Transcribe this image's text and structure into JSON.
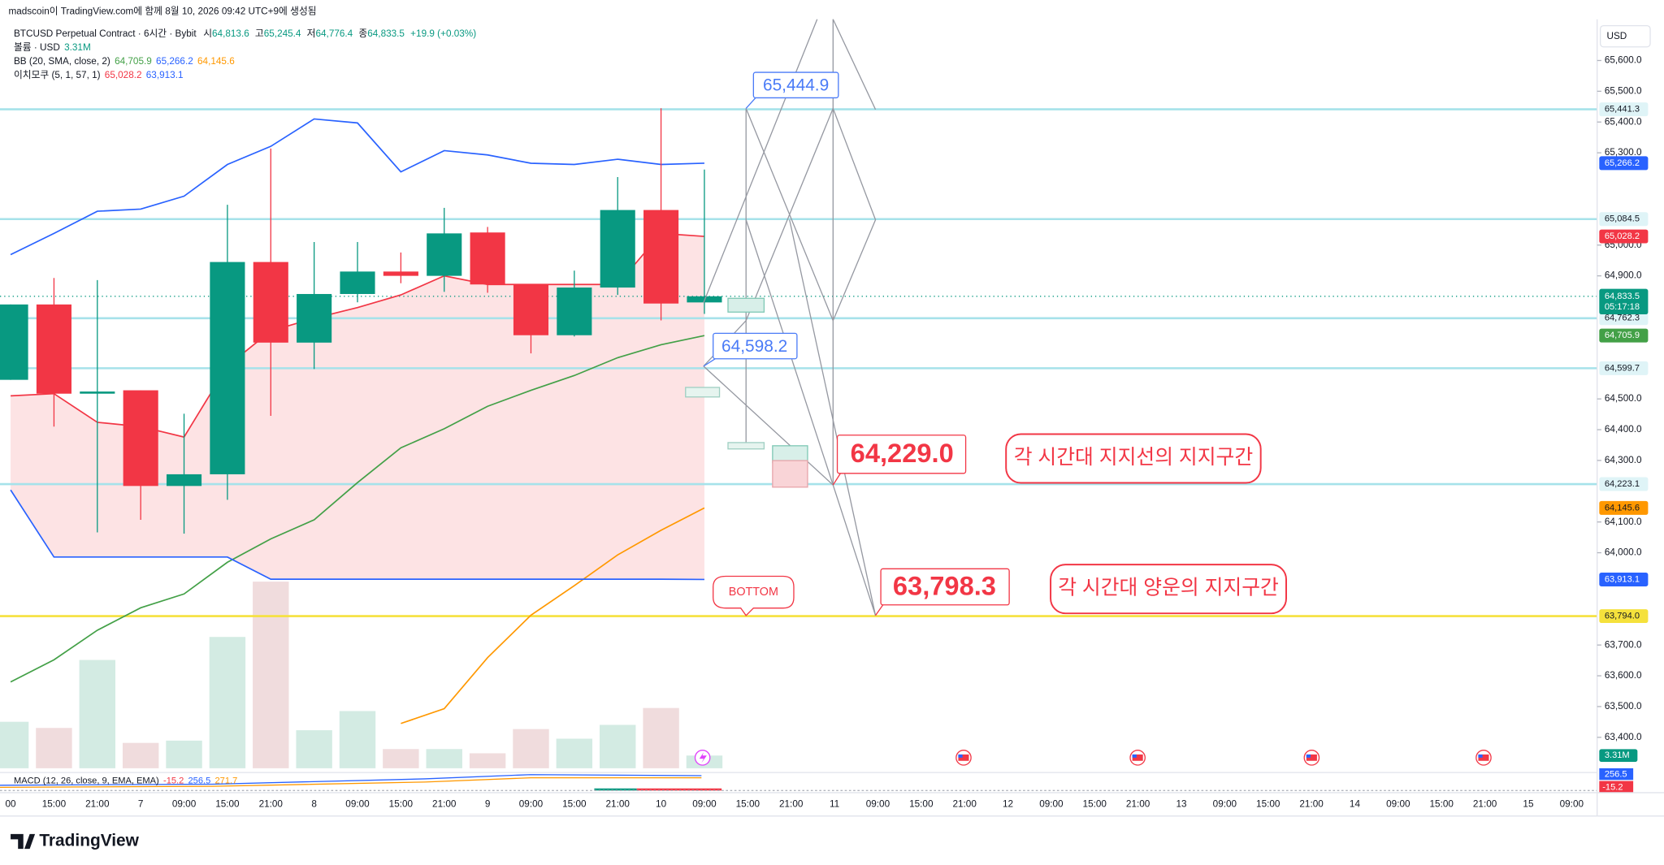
{
  "header": {
    "credit": "madscoin이 TradingView.com에 함께 8월 10, 2026 09:42 UTC+9에 생성됨",
    "symbol": "BTCUSD Perpetual Contract · 6시간 · Bybit",
    "ohlc": [
      [
        "시",
        "64,813.6"
      ],
      [
        "고",
        "65,245.4"
      ],
      [
        "저",
        "64,776.4"
      ],
      [
        "종",
        "64,833.5"
      ]
    ],
    "change": "+19.9 (+0.03%)",
    "volume_legend": "볼륨 · USD",
    "bb_legend": "BB (20, SMA, close, 2)",
    "ichimoku_legend": "이치모쿠 (5, 1, 57, 1)",
    "macd_legend": "MACD (12, 26, close, 9, EMA, EMA)",
    "macd_values": [
      "-15.2",
      "256.5",
      "271.7"
    ],
    "currency": "USD",
    "brand": "TradingView"
  },
  "annotations": {
    "callouts": [
      "65,444.9",
      "64,598.2",
      "64,229.0",
      "63,798.3"
    ],
    "notes": [
      "각 시간대 지지선의 지지구간",
      "각 시간대 양운의 지지구간",
      "BOTTOM"
    ]
  },
  "chart_data": {
    "type": "candlestick",
    "categories": [
      "00",
      "15:00",
      "21:00",
      "7",
      "09:00",
      "15:00",
      "21:00",
      "8",
      "09:00",
      "15:00",
      "21:00",
      "9",
      "09:00",
      "15:00",
      "21:00",
      "10",
      "09:00",
      "15:00",
      "21:00",
      "11",
      "09:00",
      "15:00",
      "21:00",
      "12",
      "09:00",
      "15:00",
      "21:00",
      "13",
      "09:00",
      "15:00",
      "21:00",
      "14",
      "09:00",
      "15:00",
      "21:00",
      "15",
      "09:00"
    ],
    "open": [
      64562,
      64807,
      64517,
      64528,
      64217,
      64255,
      64945,
      64683,
      64841,
      64914,
      64900,
      65041,
      64872,
      64707,
      64862,
      65114,
      64813.6,
      null,
      null,
      null,
      null,
      null,
      null,
      null,
      null,
      null,
      null,
      null,
      null,
      null,
      null,
      null,
      null,
      null,
      null,
      null,
      null
    ],
    "high": [
      64807,
      64893,
      64886,
      64528,
      64452,
      65131,
      65314,
      65010,
      65010,
      64976,
      65121,
      65059,
      64872,
      64917,
      65221,
      65445,
      65245.4,
      null,
      null,
      null,
      null,
      null,
      null,
      null,
      null,
      null,
      null,
      null,
      null,
      null,
      null,
      null,
      null,
      null,
      null,
      null,
      null
    ],
    "low": [
      64562,
      64410,
      64066,
      64107,
      64062,
      64172,
      64445,
      64597,
      64814,
      64876,
      64848,
      64845,
      64648,
      64703,
      64838,
      64755,
      64776.4,
      null,
      null,
      null,
      null,
      null,
      null,
      null,
      null,
      null,
      null,
      null,
      null,
      null,
      null,
      null,
      null,
      null,
      null,
      null,
      null
    ],
    "close": [
      64807,
      64517,
      64524,
      64217,
      64255,
      64945,
      64683,
      64841,
      64914,
      64900,
      65038,
      64872,
      64707,
      64862,
      65114,
      64810,
      64833.5,
      null,
      null,
      null,
      null,
      null,
      null,
      null,
      null,
      null,
      null,
      null,
      null,
      null,
      null,
      null,
      null,
      null,
      null,
      null,
      null
    ],
    "colors": {
      "up": "#089981",
      "down": "#f23645"
    },
    "ylim": [
      63296,
      65727
    ],
    "yticks": [
      {
        "value": 65600,
        "label": "65,600.0"
      },
      {
        "value": 65500,
        "label": "65,500.0"
      },
      {
        "value": 65400,
        "label": "65,400.0"
      },
      {
        "value": 65300,
        "label": "65,300.0"
      },
      {
        "value": 65000,
        "label": "65,000.0"
      },
      {
        "value": 64900,
        "label": "64,900.0"
      },
      {
        "value": 64500,
        "label": "64,500.0"
      },
      {
        "value": 64400,
        "label": "64,400.0"
      },
      {
        "value": 64300,
        "label": "64,300.0"
      },
      {
        "value": 64100,
        "label": "64,100.0"
      },
      {
        "value": 64000,
        "label": "64,000.0"
      },
      {
        "value": 63700,
        "label": "63,700.0"
      },
      {
        "value": 63600,
        "label": "63,600.0"
      },
      {
        "value": 63500,
        "label": "63,500.0"
      },
      {
        "value": 63400,
        "label": "63,400.0"
      }
    ],
    "series": [
      {
        "color": "#2962ff",
        "badge": "65,266.2",
        "values": [
          64969,
          65038,
          65110,
          65117,
          65159,
          65262,
          65321,
          65410,
          65397,
          65238,
          65307,
          65293,
          65266,
          65262,
          65279,
          65262,
          65266.2,
          null,
          null,
          null,
          null,
          null,
          null,
          null,
          null,
          null,
          null,
          null,
          null,
          null,
          null,
          null,
          null,
          null,
          null,
          null,
          null
        ]
      },
      {
        "color": "#43a047",
        "badge": "64,705.9",
        "values": [
          63580,
          63652,
          63748,
          63821,
          63866,
          63969,
          64045,
          64107,
          64228,
          64341,
          64403,
          64476,
          64528,
          64576,
          64634,
          64676,
          64705.9,
          null,
          null,
          null,
          null,
          null,
          null,
          null,
          null,
          null,
          null,
          null,
          null,
          null,
          null,
          null,
          null,
          null,
          null,
          null,
          null
        ]
      },
      {
        "color": "#ff9800",
        "badge": "64,145.6",
        "values": [
          null,
          null,
          null,
          null,
          null,
          null,
          null,
          null,
          null,
          63445,
          63493,
          63659,
          63797,
          63893,
          63993,
          64073,
          64145.6,
          null,
          null,
          null,
          null,
          null,
          null,
          null,
          null,
          null,
          null,
          null,
          null,
          null,
          null,
          null,
          null,
          null,
          null,
          null,
          null
        ]
      },
      {
        "color": "#f23645",
        "badge": "65,028.2",
        "values": [
          64510,
          64517,
          64424,
          64410,
          64376,
          64607,
          64721,
          64762,
          64797,
          64838,
          64900,
          64872,
          64872,
          64872,
          64872,
          65038,
          65028.2,
          null,
          null,
          null,
          null,
          null,
          null,
          null,
          null,
          null,
          null,
          null,
          null,
          null,
          null,
          null,
          null,
          null,
          null,
          null,
          null
        ]
      },
      {
        "color": "#2962ff",
        "badge": "63,913.1",
        "values": [
          64204,
          63986,
          63986,
          63986,
          63986,
          63986,
          63914,
          63914,
          63914,
          63914,
          63914,
          63914,
          63914,
          63914,
          63914,
          63914,
          63913.1,
          null,
          null,
          null,
          null,
          null,
          null,
          null,
          null,
          null,
          null,
          null,
          null,
          null,
          null,
          null,
          null,
          null,
          null,
          null,
          null
        ]
      }
    ],
    "cloud_color": "#fde3e4",
    "volume": {
      "values": [
        12.1,
        10.5,
        28.2,
        6.6,
        7.2,
        34.2,
        48.6,
        9.9,
        14.9,
        5.0,
        5.0,
        3.9,
        10.2,
        7.7,
        11.3,
        15.7,
        3.31,
        null,
        null,
        null,
        null,
        null,
        null,
        null,
        null,
        null,
        null,
        null,
        null,
        null,
        null,
        null,
        null,
        null,
        null,
        null,
        null
      ],
      "ylim": [
        0,
        194.5
      ],
      "badge": "3.31M",
      "colors": {
        "up": "#d3ebe3",
        "down": "#f0dcdd"
      }
    },
    "hlines": [
      {
        "value": 65441.3,
        "label": "65,441.3",
        "color": "#a6e2ea"
      },
      {
        "value": 65084.5,
        "label": "65,084.5",
        "color": "#a6e2ea"
      },
      {
        "value": 64762.3,
        "label": "64,762.3",
        "color": "#a6e2ea"
      },
      {
        "value": 64599.7,
        "label": "64,599.7",
        "color": "#a6e2ea"
      },
      {
        "value": 64223.1,
        "label": "64,223.1",
        "color": "#a6e2ea"
      },
      {
        "value": 63794.0,
        "label": "63,794.0",
        "color": "#f5e13c"
      }
    ],
    "current": {
      "value": 64833.5,
      "label": "64,833.5",
      "countdown": "05:17:18"
    }
  }
}
